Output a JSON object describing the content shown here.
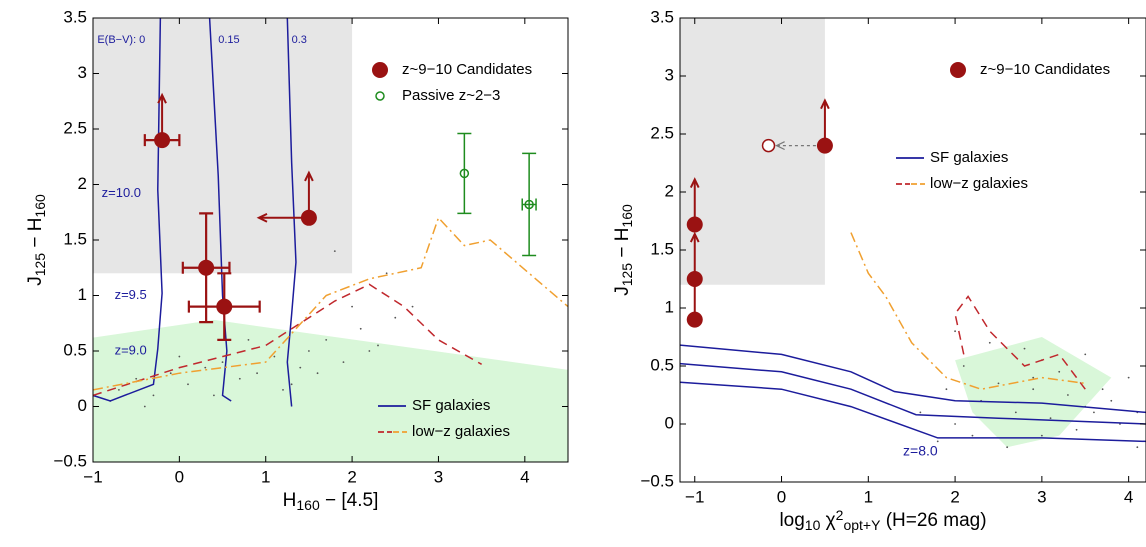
{
  "chart_data": [
    {
      "type": "scatter",
      "xlabel": [
        {
          "text": "H",
          "shift": "normal"
        },
        {
          "text": "160",
          "shift": "sub"
        },
        {
          "text": " − [4.5]",
          "shift": "normal"
        }
      ],
      "ylabel": [
        {
          "text": "J",
          "shift": "normal"
        },
        {
          "text": "125",
          "shift": "sub"
        },
        {
          "text": " − H",
          "shift": "normal"
        },
        {
          "text": "160",
          "shift": "sub"
        }
      ],
      "xlim": [
        -1,
        4.5
      ],
      "ylim": [
        -0.5,
        3.5
      ],
      "xticks": [
        {
          "value": -1,
          "label": "−1"
        },
        0,
        1,
        2,
        3,
        4
      ],
      "yticks": [
        {
          "value": -0.5,
          "label": "−0.5"
        },
        0,
        0.5,
        1,
        1.5,
        2,
        2.5,
        3,
        3.5
      ],
      "shaded_regions": [
        {
          "color": "#d9f7d9",
          "x": [
            -1,
            0.4,
            4.5,
            4.5,
            -1
          ],
          "y": [
            0.62,
            0.78,
            0.33,
            -0.5,
            -0.5
          ]
        },
        {
          "color": "#e6e6e6",
          "x": [
            -1,
            -1,
            2,
            2
          ],
          "y": [
            1.2,
            3.5,
            3.5,
            1.2
          ]
        }
      ],
      "field": {
        "color": "#555555",
        "x": [
          -0.7,
          -0.5,
          -0.3,
          -0.1,
          0.1,
          0.3,
          0.5,
          0.7,
          0.9,
          1.1,
          1.3,
          1.5,
          1.7,
          1.9,
          2.1,
          2.3,
          2.5,
          2.7,
          -0.8,
          -0.4,
          0,
          0.4,
          0.8,
          1.2,
          1.6,
          2.0,
          2.4,
          1.8,
          2.2,
          1.4
        ],
        "y": [
          0.15,
          0.25,
          0.1,
          0.3,
          0.2,
          0.35,
          0.4,
          0.25,
          0.3,
          0.45,
          0.2,
          0.5,
          0.6,
          0.4,
          0.7,
          0.55,
          0.8,
          0.9,
          0.05,
          0.0,
          0.45,
          0.1,
          0.6,
          0.15,
          0.3,
          0.9,
          1.2,
          1.4,
          0.5,
          0.35
        ]
      },
      "tracks": [
        {
          "name": "SF galaxies",
          "legend": "lower right",
          "lines": [
            {
              "color": "#1c1c9c",
              "dash": "solid",
              "x": [
                -0.22,
                -0.25,
                -0.2,
                -0.25,
                -0.3,
                -0.8,
                -1
              ],
              "y": [
                3.5,
                1.95,
                1.02,
                0.52,
                0.2,
                0.05,
                0.1
              ]
            },
            {
              "color": "#1c1c9c",
              "dash": "solid",
              "x": [
                0.35,
                0.45,
                0.5,
                0.55,
                0.5,
                0.6
              ],
              "y": [
                3.5,
                2.08,
                1.0,
                0.5,
                0.1,
                0.05
              ]
            },
            {
              "color": "#1c1c9c",
              "dash": "solid",
              "x": [
                1.25,
                1.3,
                1.35,
                1.3,
                1.25,
                1.3
              ],
              "y": [
                3.5,
                2.2,
                1.3,
                0.83,
                0.4,
                0.0
              ]
            }
          ]
        },
        {
          "name": "low−z galaxies",
          "legend": "lower right",
          "lines": [
            {
              "color": "#c0282d",
              "dash": "dashed",
              "x": [
                -1,
                0,
                1,
                1.8,
                2.2,
                2.6,
                3.0,
                3.5
              ],
              "y": [
                0.1,
                0.35,
                0.55,
                0.95,
                1.1,
                0.9,
                0.6,
                0.38
              ]
            },
            {
              "color": "#f0a030",
              "dash": "dashdot",
              "x": [
                -1,
                0,
                1,
                1.7,
                2.2,
                2.8,
                3.0,
                3.3,
                3.6,
                4.5
              ],
              "y": [
                0.15,
                0.3,
                0.4,
                1.0,
                1.15,
                1.25,
                1.7,
                1.45,
                1.5,
                0.9
              ]
            }
          ]
        }
      ],
      "points": [
        {
          "name": "z~9−10 Candidates",
          "legend": "upper right",
          "color": "#9a1212",
          "marker": "filled",
          "x": [
            -0.2,
            1.5,
            0.31,
            0.52
          ],
          "y": [
            2.4,
            1.7,
            1.25,
            0.9
          ],
          "xerr": [
            0.2,
            null,
            0.27,
            0.41
          ],
          "yerr": [
            null,
            null,
            0.49,
            0.3
          ],
          "y_lower_limit": [
            true,
            true,
            false,
            false
          ],
          "x_upper_limit": [
            false,
            true,
            false,
            false
          ]
        },
        {
          "name": "Passive z~2−3",
          "legend": "upper right",
          "color": "#1e8c1e",
          "marker": "open",
          "x": [
            3.3,
            4.05
          ],
          "y": [
            2.1,
            1.82
          ],
          "xerr": [
            null,
            0.08
          ],
          "yerr": [
            0.36,
            0.46
          ]
        }
      ],
      "annotations": [
        {
          "text": "E(B−V):  0",
          "x": -0.95,
          "y": 3.3,
          "size": 11
        },
        {
          "text": "0.15",
          "x": 0.45,
          "y": 3.3,
          "size": 11
        },
        {
          "text": "0.3",
          "x": 1.3,
          "y": 3.3,
          "size": 11
        },
        {
          "text": "z=10.0",
          "x": -0.9,
          "y": 1.92,
          "size": 13
        },
        {
          "text": "z=9.5",
          "x": -0.75,
          "y": 1.0,
          "size": 13
        },
        {
          "text": "z=9.0",
          "x": -0.75,
          "y": 0.5,
          "size": 13
        }
      ]
    },
    {
      "type": "scatter",
      "xlabel": [
        {
          "text": "log",
          "shift": "normal"
        },
        {
          "text": "10",
          "shift": "sub"
        },
        {
          "text": " χ",
          "shift": "normal"
        },
        {
          "text": "2",
          "shift": "super"
        },
        {
          "text": "opt+Y",
          "shift": "sub"
        },
        {
          "text": " (H=26 mag)",
          "shift": "normal"
        }
      ],
      "ylabel": [
        {
          "text": "J",
          "shift": "normal"
        },
        {
          "text": "125",
          "shift": "sub"
        },
        {
          "text": " − H",
          "shift": "normal"
        },
        {
          "text": "160",
          "shift": "sub"
        }
      ],
      "xlim": [
        -1.17,
        4.2
      ],
      "ylim": [
        -0.5,
        3.5
      ],
      "xticks": [
        {
          "value": -1,
          "label": "−1"
        },
        0,
        1,
        2,
        3,
        4
      ],
      "yticks": [
        {
          "value": -0.5,
          "label": "−0.5"
        },
        0,
        0.5,
        1,
        1.5,
        2,
        2.5,
        3,
        3.5
      ],
      "shaded_regions": [
        {
          "color": "#d9f7d9",
          "x": [
            2.0,
            3.0,
            3.8,
            3.2,
            2.6,
            2.2
          ],
          "y": [
            0.55,
            0.75,
            0.4,
            -0.1,
            -0.2,
            0.1
          ]
        },
        {
          "color": "#e6e6e6",
          "x": [
            -1.17,
            -1.17,
            0.5,
            0.5
          ],
          "y": [
            1.2,
            3.5,
            3.5,
            1.2
          ]
        }
      ],
      "field": {
        "color": "#555555",
        "x": [
          1.6,
          1.9,
          2.1,
          2.3,
          2.5,
          2.7,
          2.9,
          3.1,
          3.3,
          3.5,
          3.7,
          3.9,
          4.1,
          2.2,
          2.6,
          3.0,
          3.4,
          3.8,
          4.0,
          2.4,
          2.8,
          3.2,
          3.6,
          1.8,
          2.0,
          3.0,
          3.5,
          4.1,
          2.9,
          2.0
        ],
        "y": [
          0.1,
          0.3,
          0.5,
          0.2,
          0.35,
          0.1,
          0.4,
          0.05,
          0.25,
          0.15,
          0.3,
          0.0,
          0.1,
          -0.1,
          -0.2,
          0.55,
          -0.05,
          0.2,
          0.4,
          0.7,
          0.65,
          0.45,
          0.1,
          -0.15,
          0.0,
          -0.1,
          0.6,
          -0.2,
          0.3,
          0.8
        ]
      },
      "tracks": [
        {
          "name": "SF galaxies",
          "legend": "center right",
          "lines": [
            {
              "color": "#1c1c9c",
              "dash": "solid",
              "x": [
                -1.17,
                0,
                0.8,
                1.3,
                2,
                3,
                4.2
              ],
              "y": [
                0.68,
                0.6,
                0.45,
                0.28,
                0.2,
                0.18,
                0.1
              ]
            },
            {
              "color": "#1c1c9c",
              "dash": "solid",
              "x": [
                -1.17,
                0,
                0.8,
                1.55,
                2.5,
                4.2
              ],
              "y": [
                0.52,
                0.45,
                0.3,
                0.08,
                0.05,
                0.0
              ]
            },
            {
              "color": "#1c1c9c",
              "dash": "solid",
              "x": [
                -1.17,
                0,
                0.8,
                1.8,
                3,
                4.2
              ],
              "y": [
                0.36,
                0.3,
                0.15,
                -0.12,
                -0.12,
                -0.15
              ]
            }
          ]
        },
        {
          "name": "low−z galaxies",
          "legend": "center right",
          "lines": [
            {
              "color": "#c0282d",
              "dash": "dashed",
              "x": [
                2.1,
                2.0,
                2.15,
                2.4,
                2.8,
                3.2,
                3.5
              ],
              "y": [
                0.6,
                0.95,
                1.1,
                0.8,
                0.5,
                0.6,
                0.3
              ]
            },
            {
              "color": "#f0a030",
              "dash": "dashdot",
              "x": [
                0.8,
                1.0,
                1.2,
                1.5,
                1.9,
                2.3,
                3.0,
                3.5
              ],
              "y": [
                1.65,
                1.3,
                1.1,
                0.7,
                0.4,
                0.3,
                0.4,
                0.35
              ]
            }
          ]
        }
      ],
      "points": [
        {
          "name": "z~9−10 Candidates",
          "legend": "upper right",
          "color": "#9a1212",
          "marker": "filled",
          "x": [
            -1,
            -1,
            -1,
            0.5
          ],
          "y": [
            1.72,
            1.25,
            0.9,
            2.4
          ],
          "y_lower_limit": [
            true,
            true,
            true,
            true
          ],
          "x_moved": [
            null,
            null,
            null,
            -0.15
          ]
        }
      ],
      "annotations": [
        {
          "text": "z=8.0",
          "x": 1.4,
          "y": -0.24,
          "size": 14
        }
      ]
    }
  ]
}
